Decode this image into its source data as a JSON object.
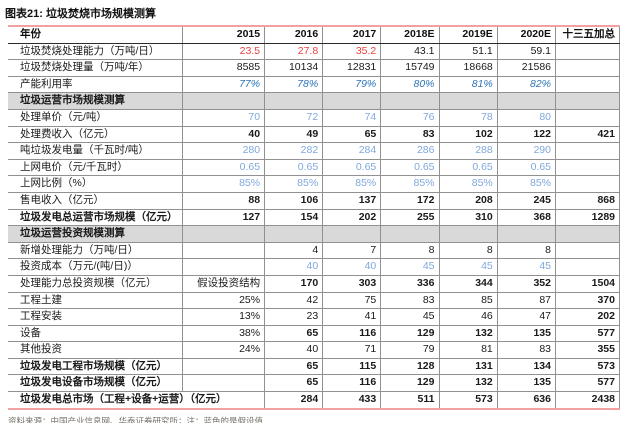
{
  "title": "图表21:  垃圾焚烧市场规模测算",
  "footer": "资料来源：中国产业信息网、华泰证券研究所；注：蓝色的是假设值",
  "colors": {
    "assumption_red": "#ef4040",
    "utilization_blue_italic": "#2e75b6",
    "assumption_light_blue": "#7fa8dc",
    "section_band_gray": "#d9d9d9",
    "rule_salmon": "#f2a1a1"
  },
  "table": {
    "columns": [
      "年份",
      "2015",
      "2016",
      "2017",
      "2018E",
      "2019E",
      "2020E",
      "十三五加总"
    ],
    "rows": [
      {
        "label": "垃圾焚烧处理能力（万吨/日）",
        "cells": [
          "23.5",
          "27.8",
          "35.2",
          "43.1",
          "51.1",
          "59.1",
          ""
        ],
        "cls": [
          "red",
          "red",
          "red",
          "",
          "",
          "",
          ""
        ]
      },
      {
        "label": "垃圾焚烧处理量（万吨/年）",
        "cells": [
          "8585",
          "10134",
          "12831",
          "15749",
          "18668",
          "21586",
          ""
        ],
        "cls": [
          "",
          "",
          "",
          "",
          "",
          "",
          ""
        ]
      },
      {
        "label": "产能利用率",
        "cells": [
          "77%",
          "78%",
          "79%",
          "80%",
          "81%",
          "82%",
          ""
        ],
        "cls": [
          "bi",
          "bi",
          "bi",
          "bi",
          "bi",
          "bi",
          ""
        ]
      },
      {
        "section": true,
        "label": "垃圾运营市场规模测算"
      },
      {
        "label": "处理单价（元/吨）",
        "cells": [
          "70",
          "72",
          "74",
          "76",
          "78",
          "80",
          ""
        ],
        "cls": [
          "lb",
          "lb",
          "lb",
          "lb",
          "lb",
          "lb",
          ""
        ]
      },
      {
        "label": "处理费收入（亿元）",
        "cells": [
          "40",
          "49",
          "65",
          "83",
          "102",
          "122",
          "421"
        ],
        "cls": [
          "b",
          "b",
          "b",
          "b",
          "b",
          "b",
          "b"
        ]
      },
      {
        "label": "吨垃圾发电量（千瓦时/吨）",
        "cells": [
          "280",
          "282",
          "284",
          "286",
          "288",
          "290",
          ""
        ],
        "cls": [
          "lb",
          "lb",
          "lb",
          "lb",
          "lb",
          "lb",
          ""
        ]
      },
      {
        "label": "上网电价（元/千瓦时）",
        "cells": [
          "0.65",
          "0.65",
          "0.65",
          "0.65",
          "0.65",
          "0.65",
          ""
        ],
        "cls": [
          "lb",
          "lb",
          "lb",
          "lb",
          "lb",
          "lb",
          ""
        ]
      },
      {
        "label": "上网比例（%）",
        "cells": [
          "85%",
          "85%",
          "85%",
          "85%",
          "85%",
          "85%",
          ""
        ],
        "cls": [
          "lb",
          "lb",
          "lb",
          "lb",
          "lb",
          "lb",
          ""
        ]
      },
      {
        "label": "售电收入（亿元）",
        "cells": [
          "88",
          "106",
          "137",
          "172",
          "208",
          "245",
          "868"
        ],
        "cls": [
          "b",
          "b",
          "b",
          "b",
          "b",
          "b",
          "b"
        ]
      },
      {
        "label": "垃圾发电总运营市场规模（亿元）",
        "lcls": "b",
        "cells": [
          "127",
          "154",
          "202",
          "255",
          "310",
          "368",
          "1289"
        ],
        "cls": [
          "b",
          "b",
          "b",
          "b",
          "b",
          "b",
          "b"
        ]
      },
      {
        "section": true,
        "label": "垃圾运营投资规模测算"
      },
      {
        "label": "新增处理能力（万吨/日）",
        "cells": [
          "",
          "4",
          "7",
          "8",
          "8",
          "8",
          ""
        ],
        "cls": [
          "",
          "",
          "",
          "",
          "",
          "",
          ""
        ]
      },
      {
        "label": "投资成本（万元/(吨/日)）",
        "cells": [
          "",
          "40",
          "40",
          "45",
          "45",
          "45",
          ""
        ],
        "cls": [
          "",
          "lb",
          "lb",
          "lb",
          "lb",
          "lb",
          ""
        ]
      },
      {
        "label": "处理能力总投资规模（亿元）",
        "cells": [
          "假设投资结构",
          "170",
          "303",
          "336",
          "344",
          "352",
          "1504"
        ],
        "cls": [
          "",
          "b",
          "b",
          "b",
          "b",
          "b",
          "b"
        ]
      },
      {
        "label": "工程土建",
        "lcls": "ind",
        "cells": [
          "25%",
          "42",
          "75",
          "83",
          "85",
          "87",
          "370"
        ],
        "cls": [
          "",
          "",
          "",
          "",
          "",
          "",
          "b"
        ]
      },
      {
        "label": "工程安装",
        "lcls": "ind",
        "cells": [
          "13%",
          "23",
          "41",
          "45",
          "46",
          "47",
          "202"
        ],
        "cls": [
          "",
          "",
          "",
          "",
          "",
          "",
          "b"
        ]
      },
      {
        "label": "设备",
        "lcls": "ind",
        "cells": [
          "38%",
          "65",
          "116",
          "129",
          "132",
          "135",
          "577"
        ],
        "cls": [
          "",
          "b",
          "b",
          "b",
          "b",
          "b",
          "b"
        ]
      },
      {
        "label": "其他投资",
        "lcls": "ind",
        "cells": [
          "24%",
          "40",
          "71",
          "79",
          "81",
          "83",
          "355"
        ],
        "cls": [
          "",
          "",
          "",
          "",
          "",
          "",
          "b"
        ]
      },
      {
        "label": "垃圾发电工程市场规模（亿元）",
        "lcls": "b",
        "cells": [
          "",
          "65",
          "115",
          "128",
          "131",
          "134",
          "573"
        ],
        "cls": [
          "",
          "b",
          "b",
          "b",
          "b",
          "b",
          "b"
        ]
      },
      {
        "label": "垃圾发电设备市场规模（亿元）",
        "lcls": "b",
        "cells": [
          "",
          "65",
          "116",
          "129",
          "132",
          "135",
          "577"
        ],
        "cls": [
          "",
          "b",
          "b",
          "b",
          "b",
          "b",
          "b"
        ]
      },
      {
        "label": "垃圾发电总市场（工程+设备+运营）（亿元）",
        "lcls": "b",
        "span2": true,
        "cells": [
          "284",
          "433",
          "511",
          "573",
          "636",
          "2438"
        ],
        "cls": [
          "b",
          "b",
          "b",
          "b",
          "b",
          "b"
        ]
      }
    ]
  }
}
